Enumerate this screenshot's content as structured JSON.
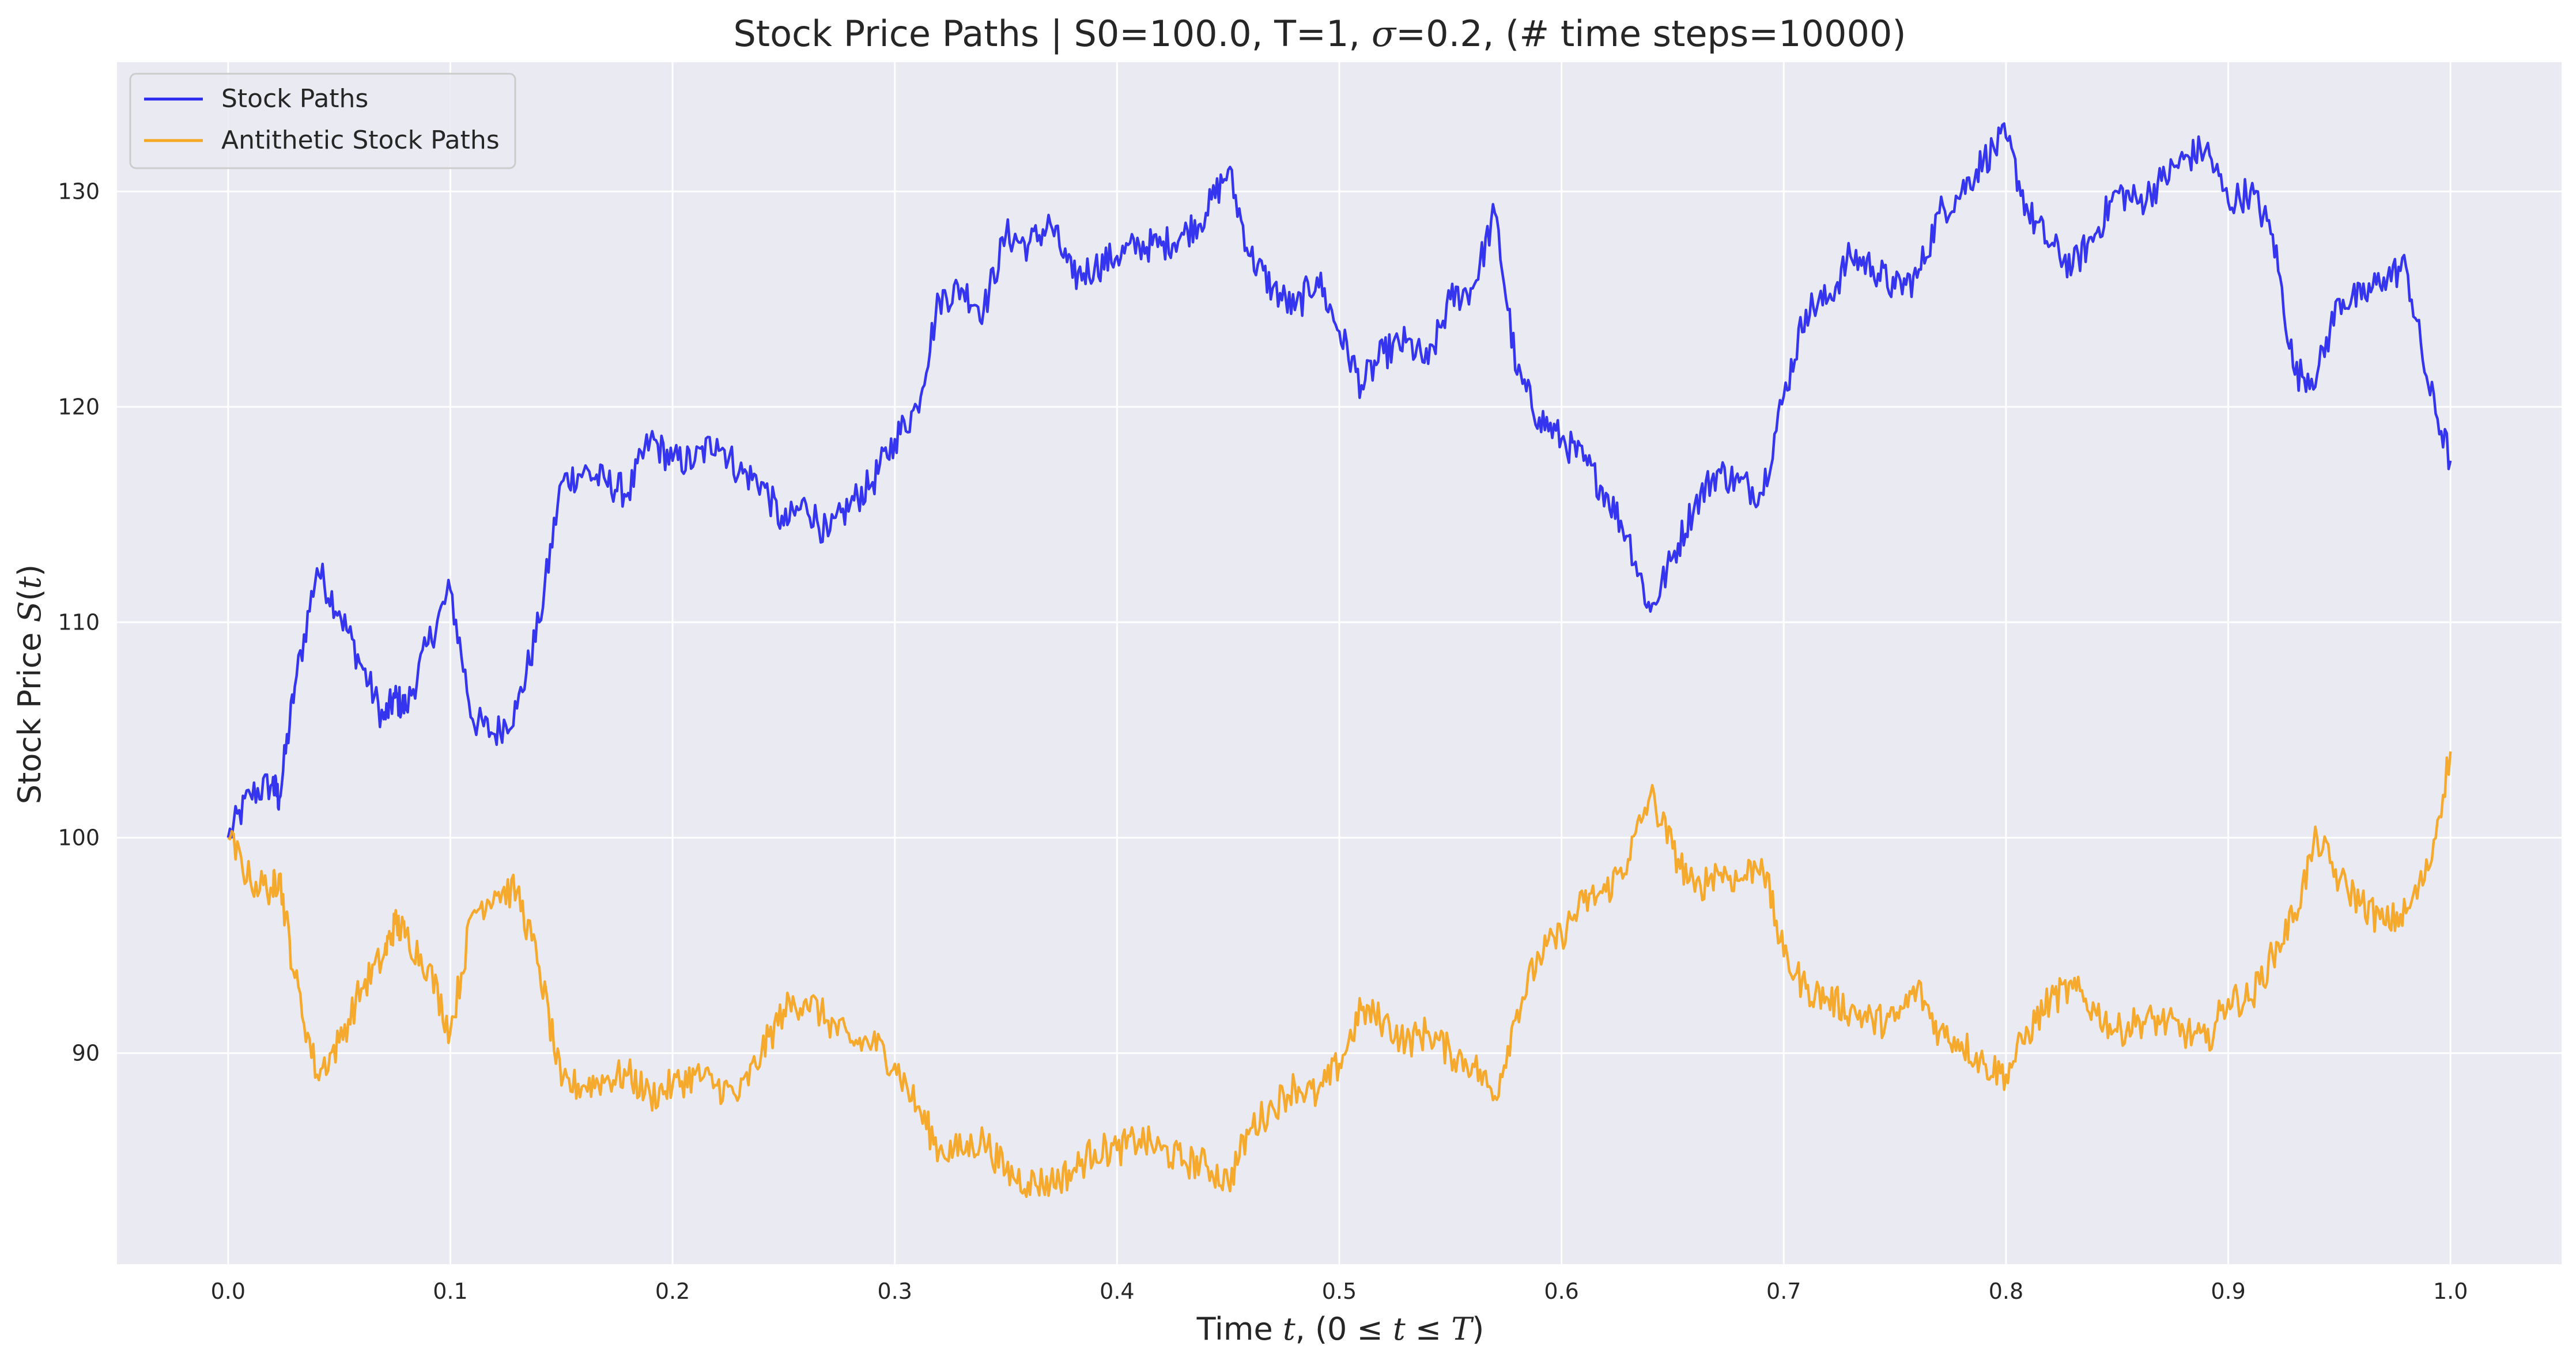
{
  "chart_data": {
    "type": "line",
    "title_parts": [
      "Stock Price Paths | S0=100.0, T=1, ",
      "σ",
      "=0.2, (# time steps=10000)"
    ],
    "xlabel_parts": [
      "Time ",
      "t",
      ", (0 ≤ ",
      "t",
      " ≤ ",
      "T",
      ")"
    ],
    "ylabel_parts": [
      "Stock Price ",
      "S",
      "(",
      "t",
      ")"
    ],
    "xlim": [
      -0.05,
      1.05
    ],
    "ylim": [
      80.2,
      136
    ],
    "xticks": [
      0.0,
      0.1,
      0.2,
      0.3,
      0.4,
      0.5,
      0.6,
      0.7,
      0.8,
      0.9,
      1.0
    ],
    "xtick_labels": [
      "0.0",
      "0.1",
      "0.2",
      "0.3",
      "0.4",
      "0.5",
      "0.6",
      "0.7",
      "0.8",
      "0.9",
      "1.0"
    ],
    "yticks": [
      90,
      100,
      110,
      120,
      130
    ],
    "ytick_labels": [
      "90",
      "100",
      "110",
      "120",
      "130"
    ],
    "grid": true,
    "legend_position": "top-left",
    "background": "#eaeaf2",
    "x": [
      0.0,
      0.01,
      0.02,
      0.023,
      0.03,
      0.04,
      0.05,
      0.06,
      0.07,
      0.075,
      0.08,
      0.09,
      0.1,
      0.11,
      0.12,
      0.13,
      0.14,
      0.15,
      0.16,
      0.17,
      0.18,
      0.19,
      0.2,
      0.21,
      0.22,
      0.23,
      0.24,
      0.25,
      0.26,
      0.27,
      0.28,
      0.29,
      0.3,
      0.31,
      0.32,
      0.33,
      0.34,
      0.35,
      0.36,
      0.37,
      0.38,
      0.39,
      0.4,
      0.41,
      0.42,
      0.43,
      0.44,
      0.45,
      0.46,
      0.47,
      0.48,
      0.49,
      0.5,
      0.51,
      0.52,
      0.53,
      0.54,
      0.55,
      0.56,
      0.57,
      0.58,
      0.59,
      0.6,
      0.61,
      0.62,
      0.63,
      0.64,
      0.65,
      0.66,
      0.67,
      0.68,
      0.69,
      0.7,
      0.71,
      0.72,
      0.73,
      0.74,
      0.75,
      0.76,
      0.77,
      0.78,
      0.79,
      0.8,
      0.81,
      0.82,
      0.83,
      0.84,
      0.85,
      0.86,
      0.87,
      0.88,
      0.89,
      0.9,
      0.91,
      0.92,
      0.93,
      0.94,
      0.95,
      0.96,
      0.97,
      0.98,
      0.99,
      1.0
    ],
    "series": [
      {
        "name": "Stock Paths",
        "color": "#2b2bef",
        "values": [
          100.0,
          102.0,
          102.5,
          101.8,
          107.0,
          112.5,
          110.5,
          108.0,
          105.5,
          106.5,
          106.0,
          109.0,
          111.5,
          105.5,
          104.8,
          106.0,
          110.0,
          116.5,
          117.0,
          116.5,
          116.0,
          118.5,
          117.5,
          117.5,
          118.5,
          117.0,
          116.5,
          114.5,
          115.5,
          114.0,
          115.5,
          116.5,
          118.5,
          120.0,
          125.0,
          125.5,
          124.5,
          128.0,
          127.5,
          128.5,
          126.0,
          126.5,
          127.0,
          127.5,
          127.5,
          128.0,
          129.0,
          131.0,
          127.0,
          125.5,
          124.5,
          126.0,
          123.5,
          121.0,
          122.5,
          123.0,
          122.0,
          125.0,
          125.5,
          129.0,
          121.5,
          119.5,
          118.5,
          117.5,
          116.0,
          114.0,
          110.5,
          113.0,
          115.5,
          117.0,
          116.5,
          116.0,
          120.5,
          124.5,
          125.0,
          127.0,
          126.5,
          125.5,
          126.0,
          129.0,
          130.0,
          131.5,
          132.5,
          129.0,
          127.5,
          126.5,
          128.0,
          130.0,
          129.5,
          130.5,
          131.5,
          132.0,
          129.5,
          130.0,
          128.0,
          121.5,
          121.5,
          125.0,
          125.0,
          126.0,
          126.5,
          121.0,
          117.5
        ]
      },
      {
        "name": "Antithetic Stock Paths",
        "color": "#f5a623",
        "values": [
          100.0,
          98.0,
          97.6,
          98.3,
          93.5,
          89.0,
          90.5,
          93.0,
          94.5,
          96.0,
          95.5,
          94.0,
          91.0,
          96.5,
          97.5,
          97.5,
          94.0,
          88.5,
          88.5,
          88.8,
          89.0,
          88.0,
          88.5,
          89.0,
          88.5,
          88.0,
          90.0,
          92.0,
          92.5,
          91.5,
          90.5,
          90.5,
          89.5,
          87.5,
          85.5,
          85.5,
          86.0,
          84.5,
          84.0,
          84.0,
          84.5,
          85.5,
          85.5,
          86.0,
          85.5,
          85.0,
          84.8,
          84.0,
          86.5,
          87.5,
          88.5,
          88.0,
          89.5,
          92.0,
          91.5,
          90.5,
          91.0,
          90.0,
          89.5,
          88.0,
          92.0,
          94.5,
          95.5,
          97.0,
          97.5,
          99.0,
          102.0,
          99.5,
          97.5,
          98.5,
          98.0,
          99.0,
          94.5,
          93.0,
          92.5,
          92.0,
          91.5,
          91.5,
          93.0,
          91.0,
          90.5,
          89.5,
          89.0,
          91.0,
          92.5,
          93.0,
          92.0,
          91.0,
          91.5,
          91.5,
          91.0,
          90.5,
          92.5,
          92.5,
          94.5,
          96.5,
          100.0,
          98.0,
          97.0,
          96.0,
          96.5,
          98.5,
          104.0
        ]
      }
    ]
  }
}
